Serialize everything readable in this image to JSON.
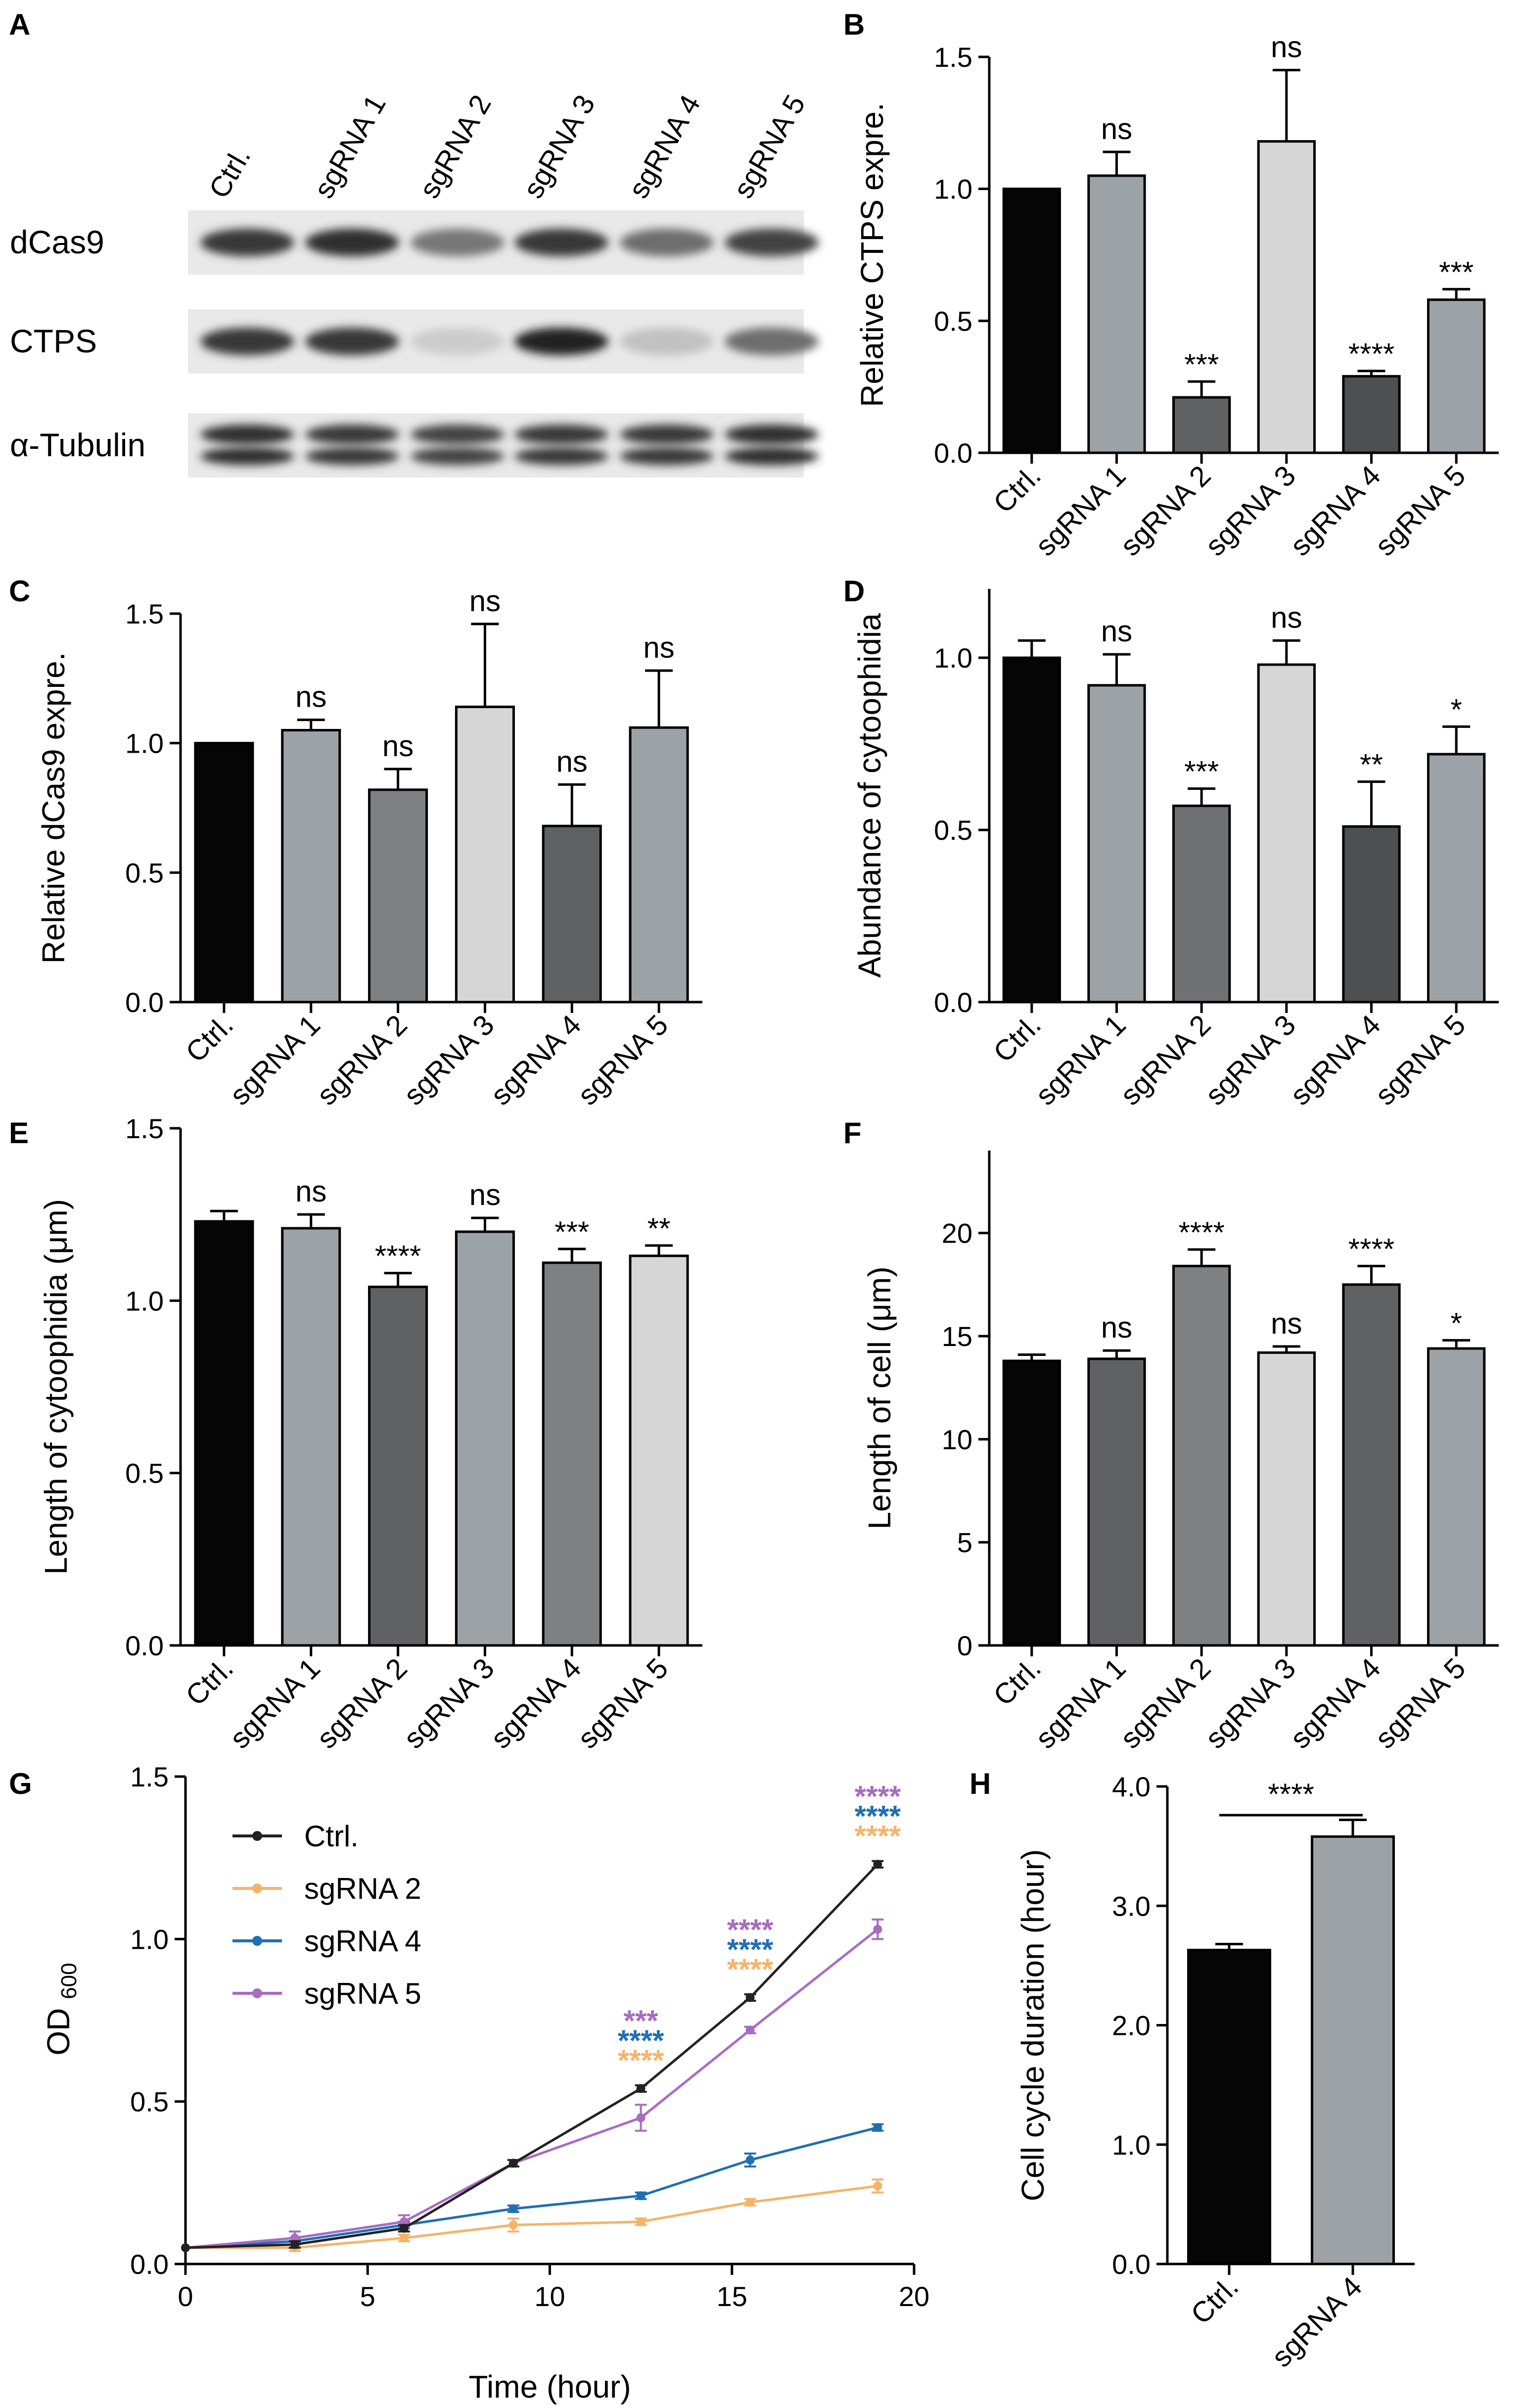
{
  "colors": {
    "black": "#000000",
    "ctrl": "#050505",
    "gray_light": "#d6d6d6",
    "gray_mid": "#9da2a6",
    "gray_dark": "#5f6163",
    "gray_darker": "#4e4f50",
    "orange": "#f5b36a",
    "blue": "#1f6fb5",
    "purple": "#a86cc1",
    "line_black": "#222222"
  },
  "blot": {
    "letter": "A",
    "lanes": [
      "Ctrl.",
      "sgRNA 1",
      "sgRNA 2",
      "sgRNA 3",
      "sgRNA 4",
      "sgRNA 5"
    ],
    "rows": [
      {
        "label": "dCas9",
        "intensity": [
          0.85,
          0.9,
          0.55,
          0.85,
          0.6,
          0.8
        ]
      },
      {
        "label": "CTPS",
        "intensity": [
          0.85,
          0.85,
          0.15,
          0.95,
          0.2,
          0.6
        ]
      },
      {
        "label": "α-Tubulin",
        "intensity": [
          0.9,
          0.85,
          0.8,
          0.85,
          0.85,
          0.9
        ]
      }
    ]
  },
  "chart_data": [
    {
      "panel": "B",
      "type": "bar",
      "categories": [
        "Ctrl.",
        "sgRNA 1",
        "sgRNA 2",
        "sgRNA 3",
        "sgRNA 4",
        "sgRNA 5"
      ],
      "values": [
        1.0,
        1.05,
        0.21,
        1.18,
        0.29,
        0.58
      ],
      "errors": [
        0.0,
        0.09,
        0.06,
        0.27,
        0.02,
        0.04
      ],
      "significance": [
        "",
        "ns",
        "***",
        "ns",
        "****",
        "***"
      ],
      "bar_colors": [
        "#050505",
        "#9da2a6",
        "#5f6163",
        "#d6d6d6",
        "#4e4f50",
        "#9da2a6"
      ],
      "ylabel": "Relative CTPS expre.",
      "ylim": [
        0,
        1.5
      ],
      "yticks": [
        0.0,
        0.5,
        1.0,
        1.5
      ],
      "tick_labels": [
        "0.0",
        "0.5",
        "1.0",
        "1.5"
      ]
    },
    {
      "panel": "C",
      "type": "bar",
      "categories": [
        "Ctrl.",
        "sgRNA 1",
        "sgRNA 2",
        "sgRNA 3",
        "sgRNA 4",
        "sgRNA 5"
      ],
      "values": [
        1.0,
        1.05,
        0.82,
        1.14,
        0.68,
        1.06
      ],
      "errors": [
        0.0,
        0.04,
        0.08,
        0.32,
        0.16,
        0.22
      ],
      "significance": [
        "",
        "ns",
        "ns",
        "ns",
        "ns",
        "ns"
      ],
      "bar_colors": [
        "#050505",
        "#9da2a6",
        "#7d8184",
        "#d6d6d6",
        "#5f6163",
        "#9da2a6"
      ],
      "ylabel": "Relative dCas9 expre.",
      "ylim": [
        0,
        1.5
      ],
      "yticks": [
        0.0,
        0.5,
        1.0,
        1.5
      ],
      "tick_labels": [
        "0.0",
        "0.5",
        "1.0",
        "1.5"
      ]
    },
    {
      "panel": "D",
      "type": "bar",
      "categories": [
        "Ctrl.",
        "sgRNA 1",
        "sgRNA 2",
        "sgRNA 3",
        "sgRNA 4",
        "sgRNA 5"
      ],
      "values": [
        1.0,
        0.92,
        0.57,
        0.98,
        0.51,
        0.72
      ],
      "errors": [
        0.05,
        0.09,
        0.05,
        0.07,
        0.13,
        0.08
      ],
      "significance": [
        "",
        "ns",
        "***",
        "ns",
        "**",
        "*"
      ],
      "bar_colors": [
        "#050505",
        "#9da2a6",
        "#6f7275",
        "#d6d6d6",
        "#4e4f50",
        "#9da2a6"
      ],
      "ylabel": "Abundance of cytoophidia",
      "ylim": [
        0,
        1.2
      ],
      "yticks": [
        0.0,
        0.5,
        1.0
      ],
      "tick_labels": [
        "0.0",
        "0.5",
        "1.0"
      ]
    },
    {
      "panel": "E",
      "type": "bar",
      "categories": [
        "Ctrl.",
        "sgRNA 1",
        "sgRNA 2",
        "sgRNA 3",
        "sgRNA 4",
        "sgRNA 5"
      ],
      "values": [
        1.23,
        1.21,
        1.04,
        1.2,
        1.11,
        1.13
      ],
      "errors": [
        0.03,
        0.04,
        0.04,
        0.04,
        0.04,
        0.03
      ],
      "significance": [
        "",
        "ns",
        "****",
        "ns",
        "***",
        "**"
      ],
      "bar_colors": [
        "#050505",
        "#9da2a6",
        "#5f6163",
        "#9da2a6",
        "#7d8184",
        "#d6d6d6"
      ],
      "ylabel": "Length of cytoophidia (μm)",
      "ylim": [
        0,
        1.5
      ],
      "yticks": [
        0.0,
        0.5,
        1.0,
        1.5
      ],
      "tick_labels": [
        "0.0",
        "0.5",
        "1.0",
        "1.5"
      ]
    },
    {
      "panel": "F",
      "type": "bar",
      "categories": [
        "Ctrl.",
        "sgRNA 1",
        "sgRNA 2",
        "sgRNA 3",
        "sgRNA 4",
        "sgRNA 5"
      ],
      "values": [
        13.8,
        13.9,
        18.4,
        14.2,
        17.5,
        14.4
      ],
      "errors": [
        0.3,
        0.4,
        0.8,
        0.3,
        0.9,
        0.4
      ],
      "significance": [
        "",
        "ns",
        "****",
        "ns",
        "****",
        "*"
      ],
      "bar_colors": [
        "#050505",
        "#5f6163",
        "#7d8184",
        "#d6d6d6",
        "#5f6163",
        "#9da2a6"
      ],
      "ylabel": "Length of cell (μm)",
      "ylim": [
        0,
        24
      ],
      "yticks": [
        0,
        5,
        10,
        15,
        20
      ],
      "tick_labels": [
        "0",
        "5",
        "10",
        "15",
        "20"
      ]
    },
    {
      "panel": "G",
      "type": "line",
      "xlabel": "Time (hour)",
      "ylabel": "OD",
      "ylabel_sub": "600",
      "xlim": [
        0,
        20
      ],
      "ylim": [
        0,
        1.5
      ],
      "xticks": [
        0,
        5,
        10,
        15,
        20
      ],
      "x_tick_labels": [
        "0",
        "5",
        "10",
        "15",
        "20"
      ],
      "yticks": [
        0.0,
        0.5,
        1.0,
        1.5
      ],
      "y_tick_labels": [
        "0.0",
        "0.5",
        "1.0",
        "1.5"
      ],
      "x": [
        0,
        3,
        6,
        9,
        12.5,
        15.5,
        19
      ],
      "series": [
        {
          "name": "Ctrl.",
          "color": "#222222",
          "values": [
            0.05,
            0.06,
            0.11,
            0.31,
            0.54,
            0.82,
            1.23
          ],
          "errors": [
            0,
            0.01,
            0.01,
            0.01,
            0.01,
            0.01,
            0.01
          ]
        },
        {
          "name": "sgRNA 2",
          "color": "#f5b36a",
          "values": [
            0.05,
            0.05,
            0.08,
            0.12,
            0.13,
            0.19,
            0.24
          ],
          "errors": [
            0,
            0.01,
            0.01,
            0.02,
            0.01,
            0.01,
            0.02
          ]
        },
        {
          "name": "sgRNA 4",
          "color": "#1f6fb5",
          "values": [
            0.05,
            0.07,
            0.12,
            0.17,
            0.21,
            0.32,
            0.42
          ],
          "errors": [
            0,
            0.01,
            0.01,
            0.01,
            0.01,
            0.02,
            0.01
          ]
        },
        {
          "name": "sgRNA 5",
          "color": "#a86cc1",
          "values": [
            0.05,
            0.08,
            0.13,
            0.31,
            0.45,
            0.72,
            1.03
          ],
          "errors": [
            0,
            0.02,
            0.02,
            0.01,
            0.04,
            0.01,
            0.03
          ]
        }
      ],
      "annotations": [
        {
          "x": 12.5,
          "labels": [
            {
              "text": "***",
              "color": "#a86cc1"
            },
            {
              "text": "****",
              "color": "#1f6fb5"
            },
            {
              "text": "****",
              "color": "#f5b36a"
            }
          ]
        },
        {
          "x": 15.5,
          "labels": [
            {
              "text": "****",
              "color": "#a86cc1"
            },
            {
              "text": "****",
              "color": "#1f6fb5"
            },
            {
              "text": "****",
              "color": "#f5b36a"
            }
          ]
        },
        {
          "x": 19,
          "labels": [
            {
              "text": "****",
              "color": "#a86cc1"
            },
            {
              "text": "****",
              "color": "#1f6fb5"
            },
            {
              "text": "****",
              "color": "#f5b36a"
            }
          ]
        }
      ]
    },
    {
      "panel": "H",
      "type": "bar",
      "categories": [
        "Ctrl.",
        "sgRNA 4"
      ],
      "values": [
        2.63,
        3.58
      ],
      "errors": [
        0.05,
        0.14
      ],
      "bar_colors": [
        "#050505",
        "#9da2a6"
      ],
      "bracket_label": "****",
      "ylabel": "Cell cycle duration (hour)",
      "ylim": [
        0,
        4.0
      ],
      "yticks": [
        0.0,
        1.0,
        2.0,
        3.0,
        4.0
      ],
      "tick_labels": [
        "0.0",
        "1.0",
        "2.0",
        "3.0",
        "4.0"
      ]
    }
  ]
}
